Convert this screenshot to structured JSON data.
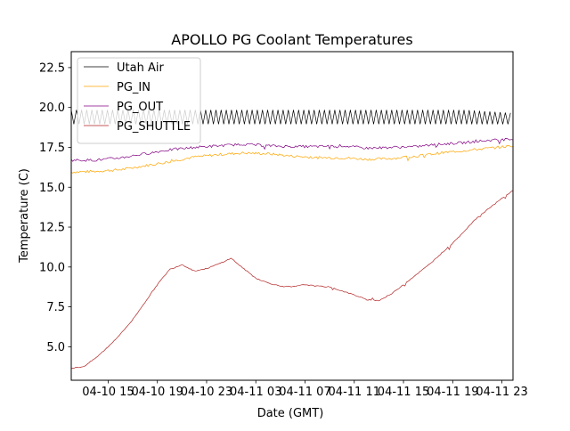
{
  "chart_data": {
    "type": "line",
    "title": "APOLLO PG Coolant Temperatures",
    "xlabel": "Date (GMT)",
    "ylabel": "Temperature (C)",
    "x_unit": "hours since 04-10 12:00 GMT",
    "xlim": [
      0,
      35.9
    ],
    "ylim": [
      2.9,
      23.5
    ],
    "yticks": [
      5.0,
      7.5,
      10.0,
      12.5,
      15.0,
      17.5,
      20.0,
      22.5
    ],
    "ytick_labels": [
      "5.0",
      "7.5",
      "10.0",
      "12.5",
      "15.0",
      "17.5",
      "20.0",
      "22.5"
    ],
    "xticks": [
      3,
      7,
      11,
      15,
      19,
      23,
      27,
      31,
      35
    ],
    "xtick_labels": [
      "04-10 15",
      "04-10 19",
      "04-10 23",
      "04-11 03",
      "04-11 07",
      "04-11 11",
      "04-11 15",
      "04-11 19",
      "04-11 23"
    ],
    "grid": false,
    "legend_position": "upper-left",
    "series": [
      {
        "name": "Utah Air",
        "color": "#000000",
        "style": "oscillating",
        "x": [
          0,
          4,
          8,
          12,
          16,
          20,
          24,
          28,
          32,
          35.9
        ],
        "values": [
          19.4,
          19.4,
          19.4,
          19.4,
          19.4,
          19.4,
          19.4,
          19.4,
          19.4,
          19.3
        ],
        "amplitude": [
          0.45,
          0.45,
          0.45,
          0.45,
          0.45,
          0.45,
          0.45,
          0.45,
          0.45,
          0.35
        ]
      },
      {
        "name": "PG_IN",
        "color": "#ffa500",
        "x": [
          0,
          2,
          4,
          6,
          8,
          10,
          12,
          14,
          16,
          18,
          20,
          22,
          24,
          26,
          28,
          30,
          32,
          34,
          35.9
        ],
        "values": [
          15.95,
          16.0,
          16.1,
          16.35,
          16.6,
          16.9,
          17.05,
          17.15,
          17.1,
          16.95,
          16.85,
          16.85,
          16.75,
          16.8,
          16.95,
          17.15,
          17.3,
          17.45,
          17.6
        ]
      },
      {
        "name": "PG_OUT",
        "color": "#800080",
        "x": [
          0,
          2,
          4,
          6,
          8,
          10,
          12,
          14,
          16,
          18,
          20,
          22,
          24,
          26,
          28,
          30,
          32,
          34,
          35.9
        ],
        "values": [
          16.7,
          16.7,
          16.85,
          17.1,
          17.35,
          17.5,
          17.6,
          17.7,
          17.6,
          17.55,
          17.55,
          17.6,
          17.45,
          17.5,
          17.55,
          17.7,
          17.8,
          17.95,
          18.0
        ]
      },
      {
        "name": "PG_SHUTTLE",
        "color": "#b22222",
        "x": [
          0,
          1,
          2,
          3,
          4,
          5,
          6,
          7,
          8,
          9,
          10,
          11,
          12,
          13,
          14,
          15,
          16,
          17,
          18,
          19,
          20,
          21,
          22,
          23,
          24,
          25,
          26,
          27,
          28,
          29,
          30,
          31,
          32,
          33,
          34,
          35,
          35.9
        ],
        "values": [
          3.65,
          3.75,
          4.3,
          5.0,
          5.8,
          6.7,
          7.8,
          8.9,
          9.85,
          10.15,
          9.75,
          9.9,
          10.2,
          10.55,
          9.9,
          9.3,
          9.0,
          8.8,
          8.75,
          8.9,
          8.8,
          8.75,
          8.5,
          8.25,
          7.95,
          7.9,
          8.3,
          8.9,
          9.5,
          10.1,
          10.8,
          11.5,
          12.3,
          13.1,
          13.7,
          14.3,
          14.8
        ]
      }
    ]
  }
}
